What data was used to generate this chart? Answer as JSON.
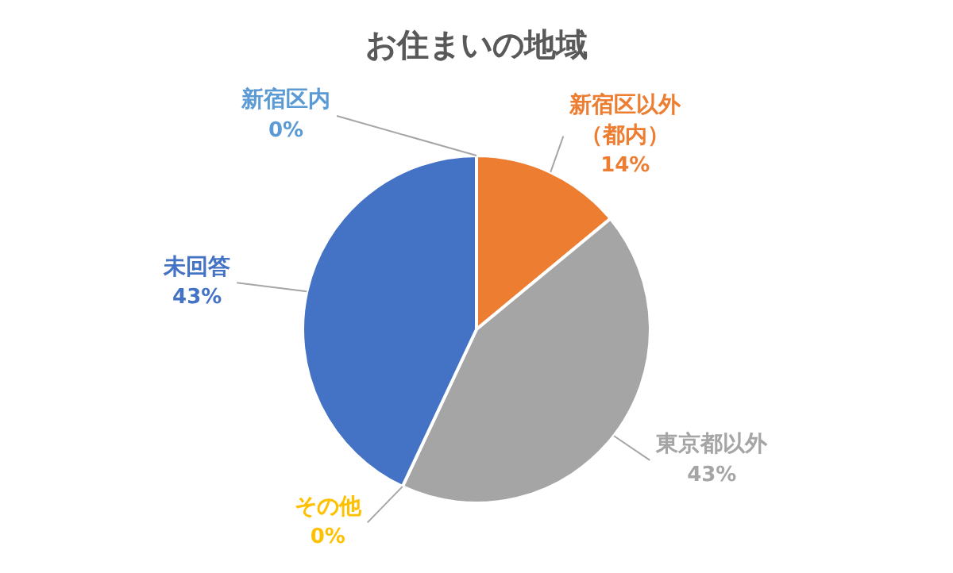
{
  "chart_data": {
    "type": "pie",
    "title": "お住まいの地域",
    "categories": [
      "新宿区内",
      "新宿区以外（都内）",
      "東京都以外",
      "その他",
      "未回答"
    ],
    "values": [
      0,
      14,
      43,
      0,
      43
    ],
    "value_labels": [
      "0%",
      "14%",
      "43%",
      "0%",
      "43%"
    ],
    "colors": [
      "#5b9bd5",
      "#ed7d31",
      "#a5a5a5",
      "#ffc000",
      "#4472c4"
    ]
  }
}
